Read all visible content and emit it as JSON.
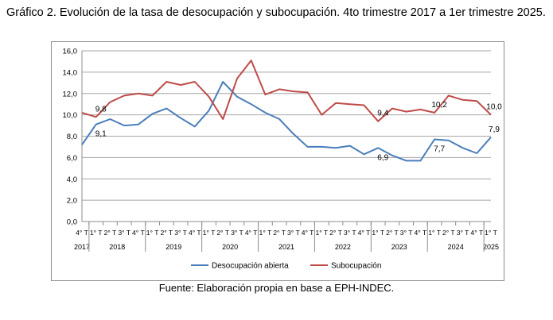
{
  "figure": {
    "title": "Gráfico 2. Evolución de la tasa de desocupación y subocupación. 4to trimestre 2017 a 1er trimestre 2025.",
    "source": "Fuente: Elaboración propia en base a EPH-INDEC."
  },
  "chart_data": {
    "type": "line",
    "title": "",
    "xlabel": "",
    "ylabel": "",
    "ylim": [
      0,
      16
    ],
    "yticks": [
      "0,0",
      "2,0",
      "4,0",
      "6,0",
      "8,0",
      "10,0",
      "12,0",
      "14,0",
      "16,0"
    ],
    "grid": true,
    "legend_position": "bottom",
    "quarter_labels": [
      "4° T",
      "1° T",
      "2° T",
      "3° T",
      "4° T",
      "1° T",
      "2° T",
      "3° T",
      "4° T",
      "1° T",
      "2° T",
      "3° T",
      "4° T",
      "1° T",
      "2° T",
      "3° T",
      "4° T",
      "1° T",
      "2° T",
      "3° T",
      "4° T",
      "1° T",
      "2° T",
      "3° T",
      "4° T",
      "1° T",
      "2° T",
      "3° T",
      "4° T",
      "1° T"
    ],
    "years": [
      {
        "label": "2017",
        "index": 0
      },
      {
        "label": "2018",
        "index": 2.5
      },
      {
        "label": "2019",
        "index": 6.5
      },
      {
        "label": "2020",
        "index": 10.5
      },
      {
        "label": "2021",
        "index": 14.5
      },
      {
        "label": "2022",
        "index": 18.5
      },
      {
        "label": "2023",
        "index": 22.5
      },
      {
        "label": "2024",
        "index": 26.5
      },
      {
        "label": "2025",
        "index": 29
      }
    ],
    "series": [
      {
        "name": "Desocupación abierta",
        "color": "#4a7ebb",
        "values": [
          7.2,
          9.1,
          9.6,
          9.0,
          9.1,
          10.1,
          10.6,
          9.7,
          8.9,
          10.4,
          13.1,
          11.7,
          11.0,
          10.2,
          9.6,
          8.2,
          7.0,
          7.0,
          6.9,
          7.1,
          6.3,
          6.9,
          6.2,
          5.7,
          5.7,
          7.7,
          7.6,
          6.9,
          6.4,
          7.9
        ]
      },
      {
        "name": "Subocupación",
        "color": "#be4b48",
        "values": [
          10.2,
          9.8,
          11.2,
          11.8,
          12.0,
          11.8,
          13.1,
          12.8,
          13.1,
          11.7,
          9.6,
          13.4,
          15.1,
          11.9,
          12.4,
          12.2,
          12.1,
          10.0,
          11.1,
          11.0,
          10.9,
          9.4,
          10.6,
          10.3,
          10.5,
          10.2,
          11.8,
          11.4,
          11.3,
          10.0
        ]
      }
    ],
    "annotations": [
      {
        "series": 0,
        "index": 1,
        "text": "9,1",
        "pos": "below"
      },
      {
        "series": 1,
        "index": 1,
        "text": "9,8",
        "pos": "above"
      },
      {
        "series": 1,
        "index": 21,
        "text": "9,4",
        "pos": "above"
      },
      {
        "series": 0,
        "index": 21,
        "text": "6,9",
        "pos": "below"
      },
      {
        "series": 1,
        "index": 25,
        "text": "10,2",
        "pos": "above"
      },
      {
        "series": 0,
        "index": 25,
        "text": "7,7",
        "pos": "below"
      },
      {
        "series": 1,
        "index": 29,
        "text": "10,0",
        "pos": "above"
      },
      {
        "series": 0,
        "index": 29,
        "text": "7,9",
        "pos": "above"
      }
    ]
  }
}
